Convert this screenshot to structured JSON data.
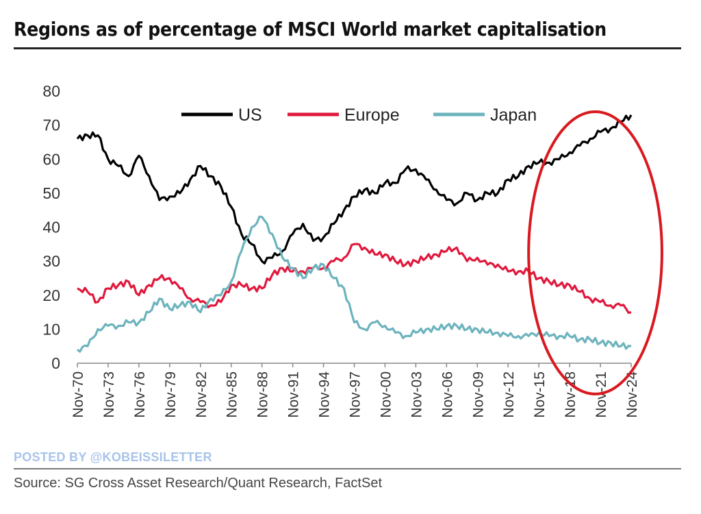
{
  "chart_data": {
    "type": "line",
    "title": "Regions as of percentage of MSCI World market capitalisation",
    "xlabel": "",
    "ylabel": "",
    "ylim": [
      0,
      80
    ],
    "yticks": [
      "0",
      "10",
      "20",
      "30",
      "40",
      "50",
      "60",
      "70",
      "80"
    ],
    "xlim": [
      1970,
      2024
    ],
    "xticks": [
      "Nov-70",
      "Nov-73",
      "Nov-76",
      "Nov-79",
      "Nov-82",
      "Nov-85",
      "Nov-88",
      "Nov-91",
      "Nov-94",
      "Nov-97",
      "Nov-00",
      "Nov-03",
      "Nov-06",
      "Nov-09",
      "Nov-12",
      "Nov-15",
      "Nov-18",
      "Nov-21",
      "Nov-24"
    ],
    "grid": false,
    "legend_position": "top-center",
    "x": [
      1970,
      1971,
      1972,
      1973,
      1974,
      1975,
      1976,
      1977,
      1978,
      1979,
      1980,
      1981,
      1982,
      1983,
      1984,
      1985,
      1986,
      1987,
      1988,
      1989,
      1990,
      1991,
      1992,
      1993,
      1994,
      1995,
      1996,
      1997,
      1998,
      1999,
      2000,
      2001,
      2002,
      2003,
      2004,
      2005,
      2006,
      2007,
      2008,
      2009,
      2010,
      2011,
      2012,
      2013,
      2014,
      2015,
      2016,
      2017,
      2018,
      2019,
      2020,
      2021,
      2022,
      2023,
      2024
    ],
    "series": [
      {
        "name": "US",
        "color": "#000000",
        "values": [
          66,
          67,
          67,
          60,
          58,
          55,
          61,
          55,
          48,
          49,
          50,
          54,
          58,
          55,
          52,
          46,
          38,
          35,
          30,
          31,
          33,
          38,
          41,
          36,
          37,
          41,
          45,
          49,
          51,
          50,
          53,
          53,
          57,
          57,
          54,
          51,
          48,
          47,
          50,
          48,
          50,
          50,
          54,
          55,
          58,
          59,
          59,
          60,
          62,
          64,
          66,
          68,
          69,
          71,
          73
        ]
      },
      {
        "name": "Europe",
        "color": "#e0183c",
        "values": [
          22,
          21,
          18,
          22,
          23,
          24,
          20,
          23,
          25,
          25,
          22,
          19,
          18,
          17,
          18,
          23,
          23,
          22,
          22,
          26,
          28,
          27,
          27,
          28,
          28,
          30,
          31,
          35,
          34,
          32,
          32,
          30,
          29,
          30,
          31,
          32,
          33,
          34,
          30,
          31,
          29,
          29,
          27,
          27,
          27,
          25,
          24,
          23,
          23,
          21,
          19,
          18,
          17,
          17,
          15
        ]
      },
      {
        "name": "Japan",
        "color": "#6cb3bd",
        "values": [
          4,
          5,
          10,
          11,
          11,
          12,
          12,
          15,
          19,
          16,
          17,
          18,
          15,
          19,
          20,
          24,
          33,
          40,
          43,
          38,
          31,
          28,
          25,
          28,
          29,
          25,
          22,
          12,
          10,
          12,
          11,
          9,
          8,
          9,
          10,
          10,
          11,
          11,
          10,
          10,
          9,
          9,
          8,
          8,
          8,
          9,
          8,
          8,
          8,
          7,
          7,
          6,
          6,
          5,
          5
        ]
      }
    ],
    "annotations": [
      {
        "type": "ellipse-highlight",
        "color": "#d9191f",
        "x_range": [
          2014,
          2027
        ],
        "y_range": [
          -3,
          80
        ]
      }
    ]
  },
  "watermark": "POSTED BY @KOBEISSILETTER",
  "source": "Source: SG Cross Asset Research/Quant Research, FactSet"
}
